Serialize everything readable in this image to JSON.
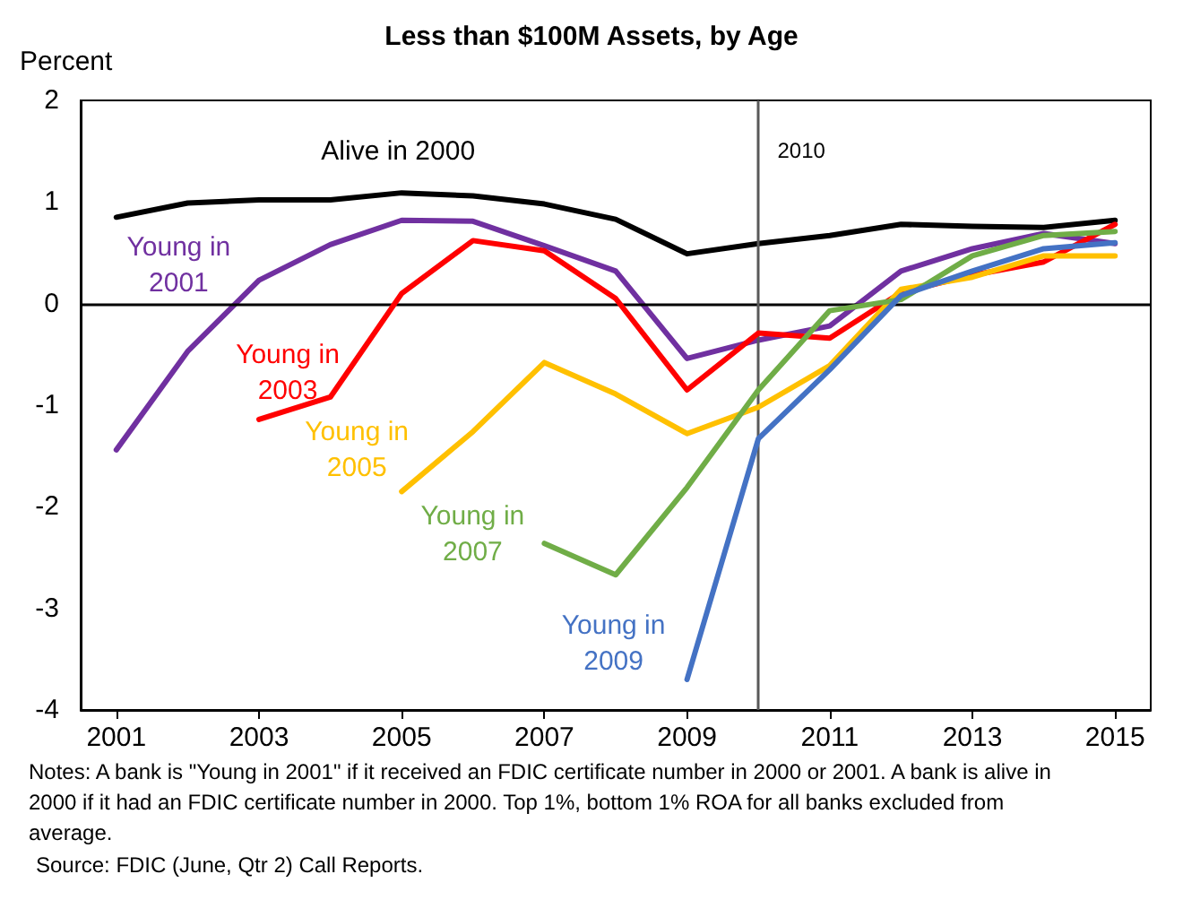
{
  "chart_data": {
    "type": "line",
    "title": "Less than $100M Assets, by Age",
    "ylabel": "Percent",
    "x": [
      2001,
      2002,
      2003,
      2004,
      2005,
      2006,
      2007,
      2008,
      2009,
      2010,
      2011,
      2012,
      2013,
      2014,
      2015
    ],
    "series": [
      {
        "name": "Alive in 2000",
        "color": "#000000",
        "values": [
          0.85,
          0.99,
          1.02,
          1.02,
          1.09,
          1.06,
          0.98,
          0.83,
          0.49,
          0.59,
          0.67,
          0.78,
          0.76,
          0.75,
          0.82
        ]
      },
      {
        "name": "Young in 2001",
        "color": "#7030a0",
        "values": [
          -1.44,
          -0.47,
          0.23,
          0.58,
          0.82,
          0.81,
          0.57,
          0.32,
          -0.54,
          -0.36,
          -0.22,
          0.32,
          0.54,
          0.69,
          0.59
        ]
      },
      {
        "name": "Young in 2003",
        "color": "#ff0000",
        "values": [
          null,
          null,
          -1.14,
          -0.92,
          0.1,
          0.62,
          0.52,
          0.05,
          -0.85,
          -0.29,
          -0.34,
          0.11,
          0.28,
          0.41,
          0.78
        ]
      },
      {
        "name": "Young in 2005",
        "color": "#ffc000",
        "values": [
          null,
          null,
          null,
          null,
          -1.85,
          -1.26,
          -0.58,
          -0.89,
          -1.28,
          -1.02,
          -0.61,
          0.14,
          0.26,
          0.47,
          0.47
        ]
      },
      {
        "name": "Young in 2007",
        "color": "#70ad47",
        "values": [
          null,
          null,
          null,
          null,
          null,
          null,
          -2.36,
          -2.67,
          -1.81,
          -0.85,
          -0.07,
          0.04,
          0.47,
          0.67,
          0.71
        ]
      },
      {
        "name": "Young in 2009",
        "color": "#4472c4",
        "values": [
          null,
          null,
          null,
          null,
          null,
          null,
          null,
          null,
          -3.7,
          -1.33,
          -0.65,
          0.08,
          0.32,
          0.54,
          0.6
        ]
      }
    ],
    "xlim": [
      2000.5,
      2015.5
    ],
    "xticks": [
      2001,
      2003,
      2005,
      2007,
      2009,
      2011,
      2013,
      2015
    ],
    "ylim": [
      -4,
      2
    ],
    "yticks": [
      -4,
      -3,
      -2,
      -1,
      0,
      1,
      2
    ],
    "ref_lines": [
      {
        "axis": "y",
        "value": 0,
        "color": "#000000"
      },
      {
        "axis": "x",
        "value": 2010,
        "label": "2010",
        "color": "#595959"
      }
    ],
    "grid": false,
    "legend": false,
    "marker": "none",
    "line_style": "solid",
    "annotations": [
      "Notes: A bank is \"Young in 2001\" if it received an FDIC certificate number in 2000 or 2001. A bank is alive in 2000 if it had an FDIC certificate number in 2000. Top 1%, bottom 1% ROA for all banks excluded from average.",
      "Source: FDIC (June, Qtr 2) Call Reports."
    ]
  }
}
